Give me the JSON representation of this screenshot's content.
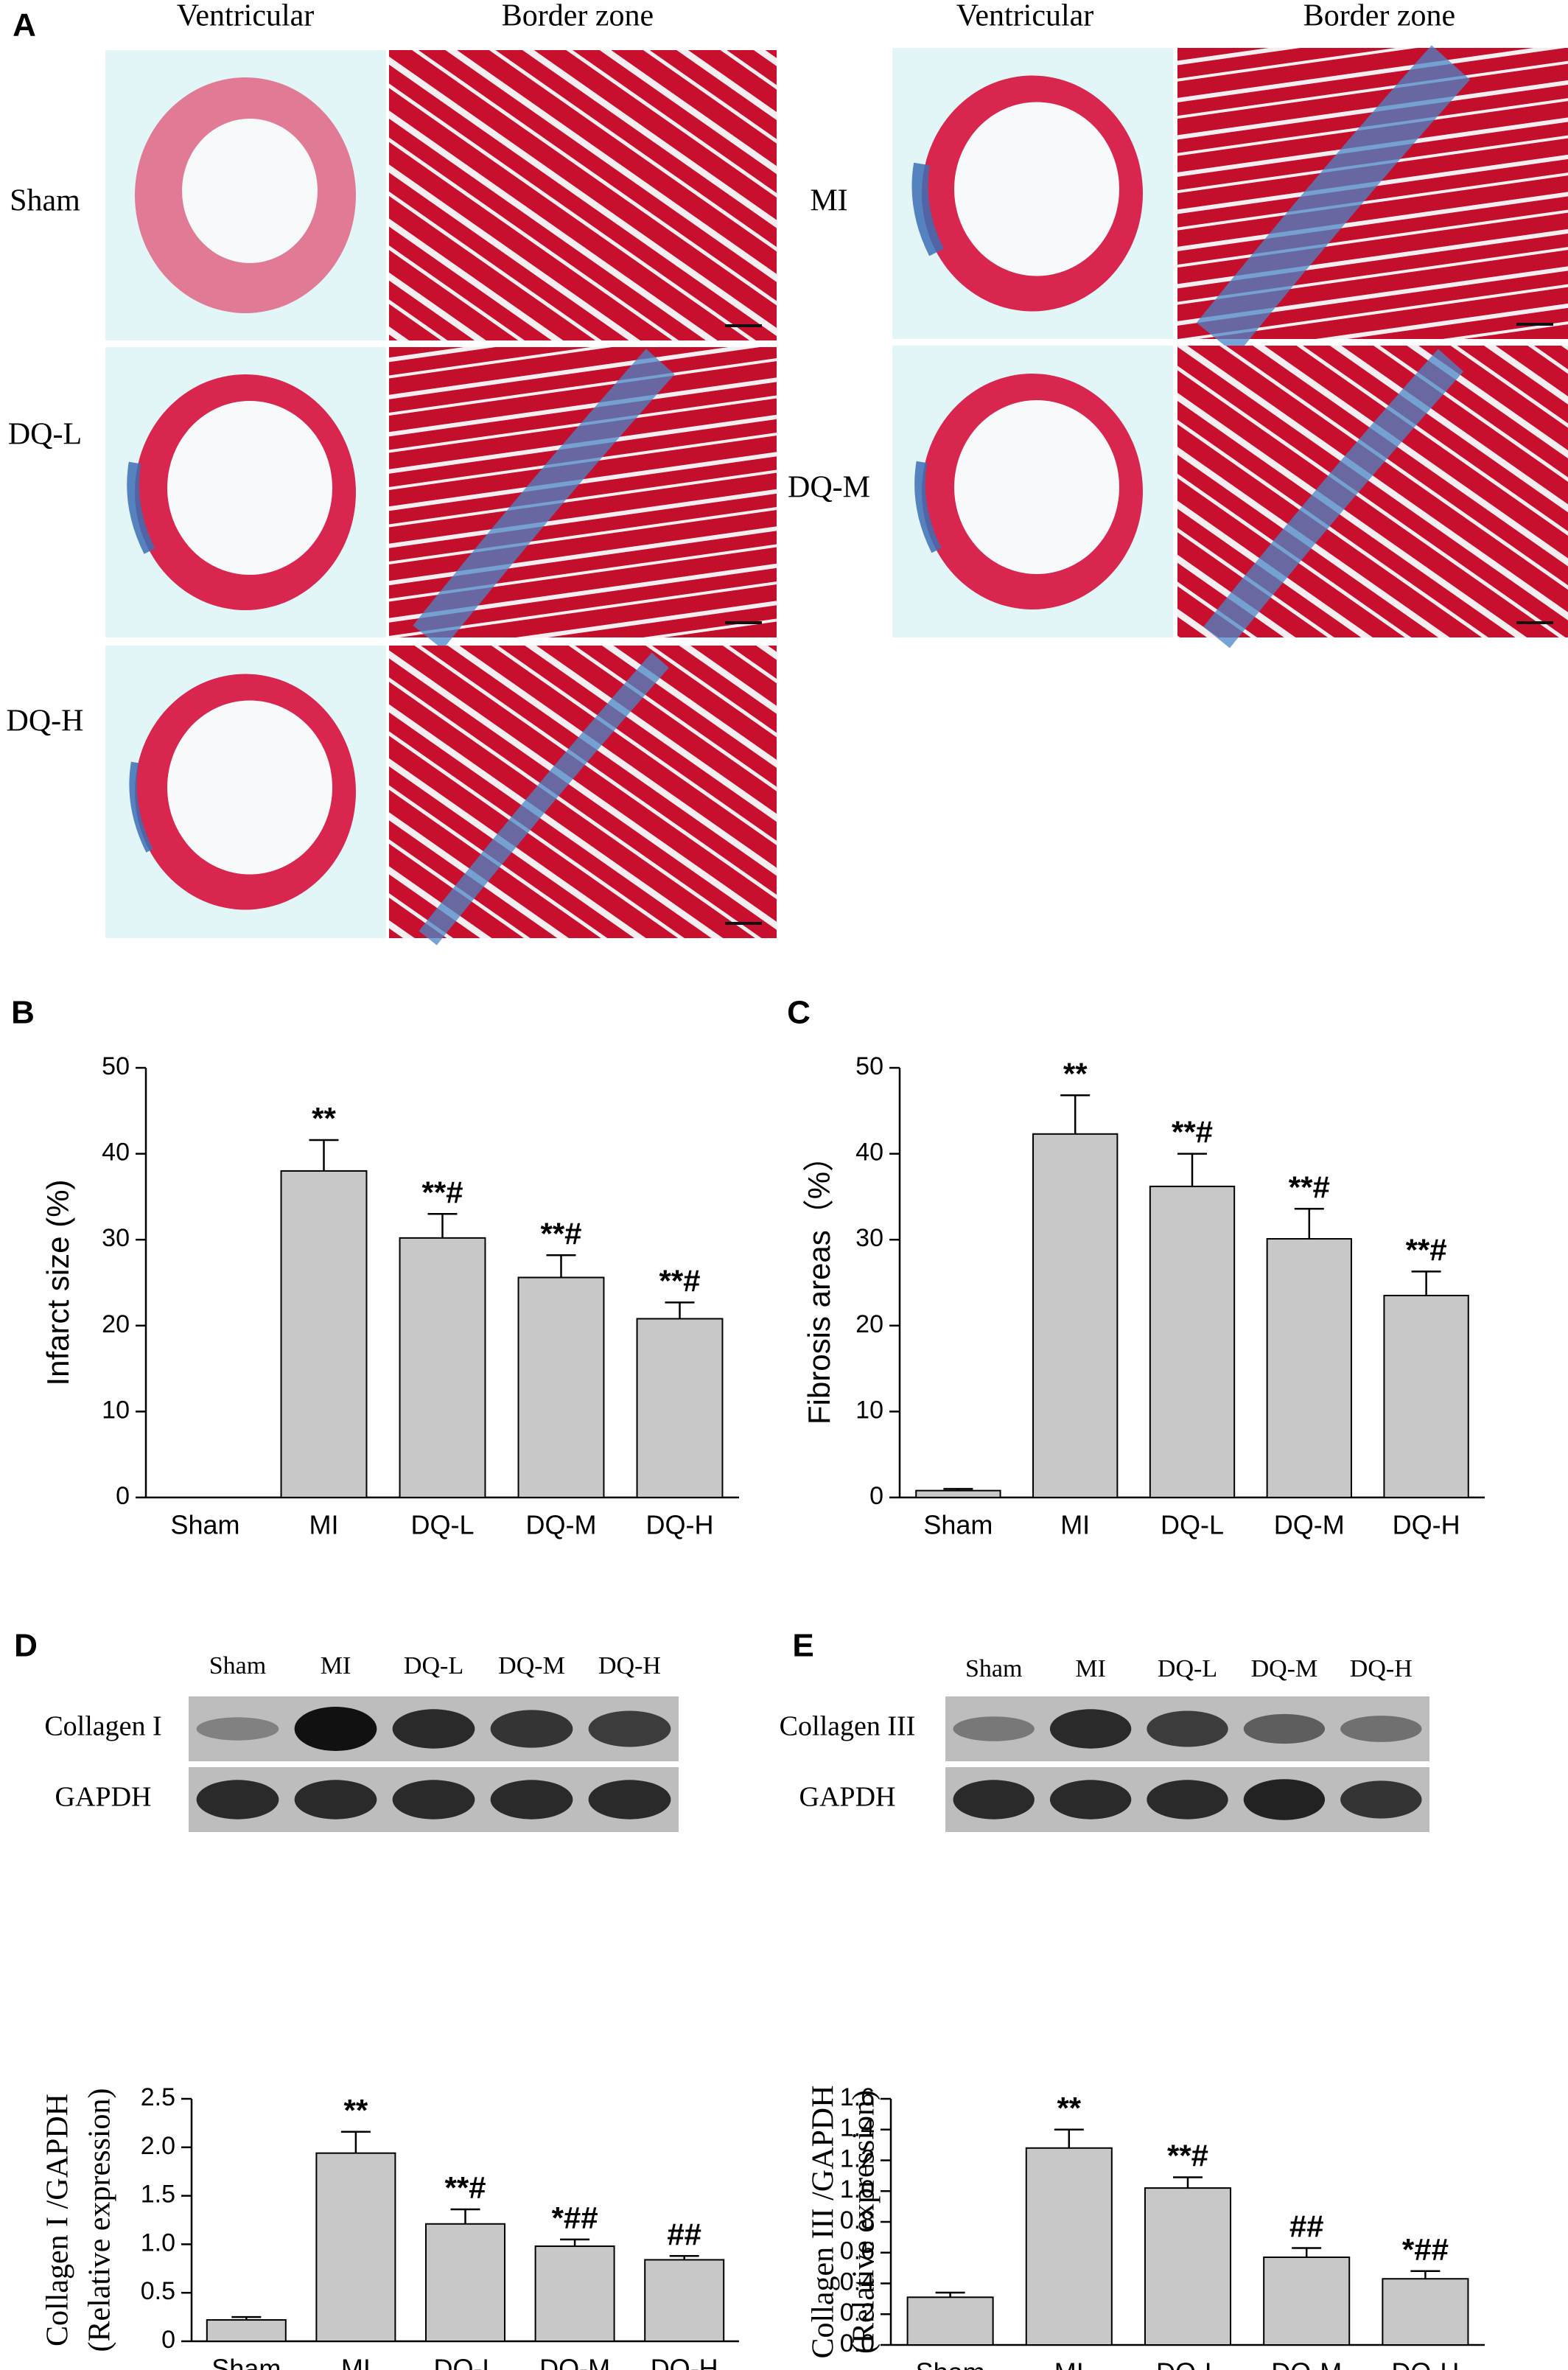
{
  "panel_a": {
    "label": "A",
    "column_headers": [
      "Ventricular",
      "Border zone",
      "Ventricular",
      "Border zone"
    ],
    "groups": [
      "Sham",
      "DQ-L",
      "DQ-H",
      "MI",
      "DQ-M"
    ]
  },
  "blots": [
    {
      "lanes": [
        "Sham",
        "MI",
        "DQ-L",
        "DQ-M",
        "DQ-H"
      ],
      "rows": [
        "Collagen I",
        "GAPDH"
      ]
    },
    {
      "lanes": [
        "Sham",
        "MI",
        "DQ-L",
        "DQ-M",
        "DQ-H"
      ],
      "rows": [
        "Collagen III",
        "GAPDH"
      ]
    }
  ],
  "chart_data": [
    {
      "type": "bar",
      "panel": "B",
      "ylabel": "Infarct size (%)",
      "color": "#c8c8c8",
      "categories": [
        "Sham",
        "MI",
        "DQ-L",
        "DQ-M",
        "DQ-H"
      ],
      "values": [
        0,
        38,
        30.2,
        25.6,
        20.8
      ],
      "errors": [
        null,
        3.6,
        2.8,
        2.6,
        1.9
      ],
      "annotations": [
        null,
        "**",
        "**#",
        "**#",
        "**#"
      ],
      "ylim": [
        0,
        50
      ],
      "yticks": [
        0,
        10,
        20,
        30,
        40,
        50
      ]
    },
    {
      "type": "bar",
      "panel": "C",
      "ylabel": "Fibrosis areas（%）",
      "color": "#c8c8c8",
      "categories": [
        "Sham",
        "MI",
        "DQ-L",
        "DQ-M",
        "DQ-H"
      ],
      "values": [
        0.8,
        42.3,
        36.2,
        30.1,
        23.5
      ],
      "errors": [
        0.2,
        4.5,
        3.8,
        3.5,
        2.8
      ],
      "annotations": [
        null,
        "**",
        "**#",
        "**#",
        "**#"
      ],
      "ylim": [
        0,
        50
      ],
      "yticks": [
        0,
        10,
        20,
        30,
        40,
        50
      ]
    },
    {
      "type": "bar",
      "panel": "D",
      "ylabel": [
        "Collagen I /GAPDH",
        "(Relative expression)"
      ],
      "color": "#c8c8c8",
      "categories": [
        "Sham",
        "MI",
        "DQ-L",
        "DQ-M",
        "DQ-H"
      ],
      "values": [
        0.22,
        1.94,
        1.21,
        0.98,
        0.84
      ],
      "errors": [
        0.03,
        0.22,
        0.15,
        0.07,
        0.04
      ],
      "annotations": [
        null,
        "**",
        "**#",
        "*##",
        "##"
      ],
      "ylim": [
        0,
        2.5
      ],
      "yticks": [
        0,
        0.5,
        {
          "value": 1,
          "label": "1.0"
        },
        1.5,
        {
          "value": 2,
          "label": "2.0"
        },
        2.5
      ]
    },
    {
      "type": "bar",
      "panel": "E",
      "ylabel": [
        "Collagen III /GAPDH",
        "(Relative expression)"
      ],
      "color": "#c8c8c8",
      "categories": [
        "Sham",
        "MI",
        "DQ-L",
        "DQ-M",
        "DQ-H"
      ],
      "values": [
        0.31,
        1.28,
        1.02,
        0.57,
        0.43
      ],
      "errors": [
        0.03,
        0.12,
        0.07,
        0.06,
        0.05
      ],
      "annotations": [
        null,
        "**",
        "**#",
        "##",
        "*##"
      ],
      "ylim": [
        0,
        1.6
      ],
      "yticks": [
        {
          "value": 0,
          "label": "0.0"
        },
        0.2,
        0.4,
        0.6,
        0.8,
        {
          "value": 1,
          "label": "1.0"
        },
        1.2,
        1.4,
        1.6
      ]
    }
  ]
}
